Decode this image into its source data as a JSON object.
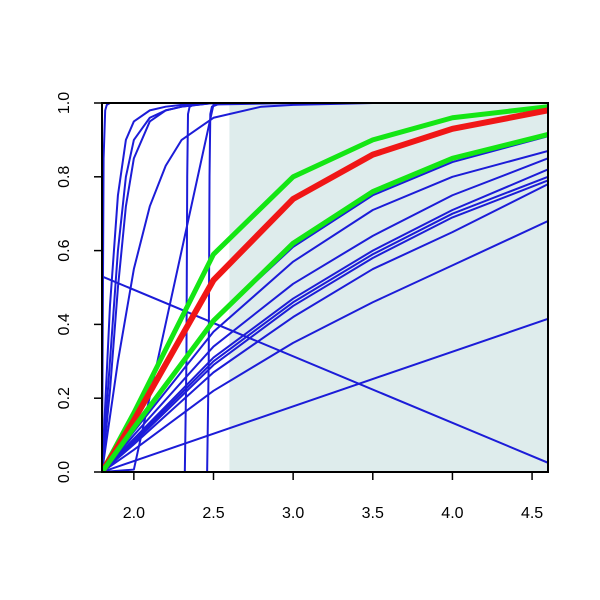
{
  "chart_data": {
    "type": "line",
    "title": "",
    "xlabel": "",
    "ylabel": "",
    "xlim": [
      1.8,
      4.6
    ],
    "ylim": [
      0.0,
      1.0
    ],
    "x_ticks": [
      2.0,
      2.5,
      3.0,
      3.5,
      4.0,
      4.5
    ],
    "x_tick_labels": [
      "2.0",
      "2.5",
      "3.0",
      "3.5",
      "4.0",
      "4.5"
    ],
    "y_ticks": [
      0.0,
      0.2,
      0.4,
      0.6,
      0.8,
      1.0
    ],
    "y_tick_labels": [
      "0.0",
      "0.2",
      "0.4",
      "0.6",
      "0.8",
      "1.0"
    ],
    "grid": false,
    "legend": "none",
    "shaded_region": {
      "x_from": 2.6,
      "x_to": 4.6,
      "y_from": 0.0,
      "y_to": 1.0,
      "color": "#deecec"
    },
    "colors": {
      "blue": "#1c1cd8",
      "red": "#f01616",
      "green": "#14e614"
    },
    "series": [
      {
        "color": "blue",
        "width": 2,
        "x": [
          1.8,
          1.81,
          1.82,
          1.83,
          1.85,
          1.9,
          2.5,
          3.0,
          4.6
        ],
        "y": [
          0.0,
          0.85,
          0.98,
          0.995,
          1.0,
          1.0,
          1.0,
          1.0,
          1.0
        ]
      },
      {
        "color": "blue",
        "width": 2,
        "x": [
          1.8,
          1.85,
          1.9,
          1.95,
          2.0,
          2.1,
          2.2,
          2.3,
          2.5,
          3.0,
          4.6
        ],
        "y": [
          0.0,
          0.45,
          0.75,
          0.9,
          0.95,
          0.98,
          0.99,
          0.995,
          1.0,
          1.0,
          1.0
        ]
      },
      {
        "color": "blue",
        "width": 2,
        "x": [
          1.8,
          1.85,
          1.9,
          1.95,
          2.0,
          2.1,
          2.2,
          2.3,
          2.5,
          3.0,
          4.6
        ],
        "y": [
          0.0,
          0.3,
          0.6,
          0.8,
          0.9,
          0.96,
          0.98,
          0.99,
          1.0,
          1.0,
          1.0
        ]
      },
      {
        "color": "blue",
        "width": 2,
        "x": [
          1.8,
          1.85,
          1.9,
          1.95,
          2.0,
          2.1,
          2.2,
          2.3,
          2.5,
          3.0,
          4.6
        ],
        "y": [
          0.0,
          0.22,
          0.5,
          0.72,
          0.85,
          0.95,
          0.98,
          0.99,
          1.0,
          1.0,
          1.0
        ]
      },
      {
        "color": "blue",
        "width": 2,
        "x": [
          1.8,
          1.9,
          2.0,
          2.1,
          2.2,
          2.3,
          2.5,
          2.8,
          3.0,
          3.5,
          4.6
        ],
        "y": [
          0.0,
          0.3,
          0.55,
          0.72,
          0.83,
          0.9,
          0.96,
          0.99,
          0.995,
          1.0,
          1.0
        ]
      },
      {
        "color": "blue",
        "width": 2,
        "x": [
          2.32,
          2.33,
          2.335,
          2.34,
          2.35,
          2.4,
          2.5,
          3.0,
          4.6
        ],
        "y": [
          0.0,
          0.3,
          0.8,
          0.97,
          0.99,
          1.0,
          1.0,
          1.0,
          1.0
        ]
      },
      {
        "color": "blue",
        "width": 2,
        "x": [
          2.46,
          2.47,
          2.475,
          2.48,
          2.49,
          2.55,
          3.0,
          4.6
        ],
        "y": [
          0.0,
          0.3,
          0.8,
          0.97,
          0.99,
          1.0,
          1.0,
          1.0
        ]
      },
      {
        "color": "blue",
        "width": 2,
        "x": [
          1.8,
          2.0,
          2.5,
          3.0,
          3.5,
          4.0,
          4.6
        ],
        "y": [
          0.0,
          0.0066,
          0.996,
          1.0,
          1.0,
          1.0,
          1.0
        ]
      },
      {
        "color": "blue",
        "width": 2,
        "x": [
          1.8,
          2.0,
          2.5,
          3.0,
          3.5,
          4.0,
          4.6
        ],
        "y": [
          0.0,
          0.12,
          0.41,
          0.61,
          0.75,
          0.84,
          0.91
        ]
      },
      {
        "color": "blue",
        "width": 2,
        "x": [
          1.8,
          2.0,
          2.5,
          3.0,
          3.5,
          4.0,
          4.6
        ],
        "y": [
          0.0,
          0.11,
          0.38,
          0.57,
          0.71,
          0.8,
          0.87
        ]
      },
      {
        "color": "blue",
        "width": 2,
        "x": [
          1.8,
          2.0,
          2.5,
          3.0,
          3.5,
          4.0,
          4.6
        ],
        "y": [
          0.0,
          0.1,
          0.34,
          0.51,
          0.64,
          0.75,
          0.85
        ]
      },
      {
        "color": "blue",
        "width": 2,
        "x": [
          1.8,
          2.0,
          2.5,
          3.0,
          3.5,
          4.0,
          4.6
        ],
        "y": [
          0.0,
          0.09,
          0.31,
          0.47,
          0.6,
          0.71,
          0.82
        ]
      },
      {
        "color": "blue",
        "width": 2,
        "x": [
          1.8,
          2.0,
          2.5,
          3.0,
          3.5,
          4.0,
          4.6
        ],
        "y": [
          0.0,
          0.085,
          0.3,
          0.46,
          0.59,
          0.7,
          0.8
        ]
      },
      {
        "color": "blue",
        "width": 2,
        "x": [
          1.8,
          2.0,
          2.5,
          3.0,
          3.5,
          4.0,
          4.6
        ],
        "y": [
          0.0,
          0.08,
          0.29,
          0.45,
          0.58,
          0.69,
          0.79
        ]
      },
      {
        "color": "blue",
        "width": 2,
        "x": [
          1.8,
          2.0,
          2.5,
          3.0,
          3.5,
          4.0,
          4.6
        ],
        "y": [
          0.0,
          0.075,
          0.27,
          0.42,
          0.55,
          0.65,
          0.78
        ]
      },
      {
        "color": "blue",
        "width": 2,
        "x": [
          1.8,
          2.0,
          2.5,
          3.0,
          3.5,
          4.0,
          4.6
        ],
        "y": [
          0.0,
          0.06,
          0.22,
          0.35,
          0.46,
          0.56,
          0.68
        ]
      },
      {
        "color": "blue",
        "width": 2,
        "x": [
          1.8,
          4.6
        ],
        "y": [
          0.0,
          0.415
        ]
      },
      {
        "color": "blue",
        "width": 2,
        "x": [
          1.8,
          4.6
        ],
        "y": [
          0.53,
          0.025
        ]
      },
      {
        "color": "green",
        "width": 5,
        "x": [
          1.8,
          2.0,
          2.5,
          3.0,
          3.5,
          4.0,
          4.6
        ],
        "y": [
          0.0,
          0.16,
          0.59,
          0.8,
          0.9,
          0.96,
          0.99
        ]
      },
      {
        "color": "red",
        "width": 6,
        "x": [
          1.8,
          2.0,
          2.5,
          3.0,
          3.5,
          4.0,
          4.6
        ],
        "y": [
          0.0,
          0.14,
          0.52,
          0.74,
          0.86,
          0.93,
          0.98
        ]
      },
      {
        "color": "green",
        "width": 5,
        "x": [
          1.8,
          2.0,
          2.5,
          3.0,
          3.5,
          4.0,
          4.6
        ],
        "y": [
          0.0,
          0.12,
          0.41,
          0.62,
          0.76,
          0.85,
          0.915
        ]
      }
    ]
  }
}
